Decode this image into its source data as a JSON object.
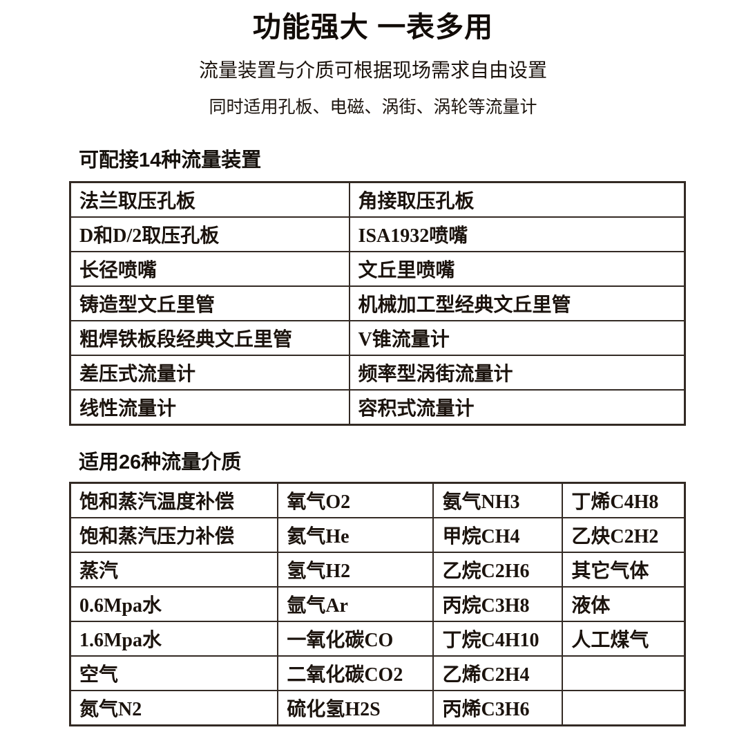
{
  "header": {
    "title": "功能强大 一表多用",
    "subtitle1": "流量装置与介质可根据现场需求自由设置",
    "subtitle2": "同时适用孔板、电磁、涡街、涡轮等流量计"
  },
  "devices_section": {
    "heading": "可配接14种流量装置",
    "rows": [
      [
        "法兰取压孔板",
        "角接取压孔板"
      ],
      [
        "D和D/2取压孔板",
        "ISA1932喷嘴"
      ],
      [
        "长径喷嘴",
        "文丘里喷嘴"
      ],
      [
        "铸造型文丘里管",
        "机械加工型经典文丘里管"
      ],
      [
        "粗焊铁板段经典文丘里管",
        "V锥流量计"
      ],
      [
        "差压式流量计",
        "频率型涡街流量计"
      ],
      [
        "线性流量计",
        "容积式流量计"
      ]
    ]
  },
  "media_section": {
    "heading": "适用26种流量介质",
    "rows": [
      [
        "饱和蒸汽温度补偿",
        "氧气O2",
        "氨气NH3",
        "丁烯C4H8"
      ],
      [
        "饱和蒸汽压力补偿",
        "氦气He",
        "甲烷CH4",
        "乙炔C2H2"
      ],
      [
        "蒸汽",
        "氢气H2",
        "乙烷C2H6",
        "其它气体"
      ],
      [
        "0.6Mpa水",
        "氩气Ar",
        "丙烷C3H8",
        "液体"
      ],
      [
        "1.6Mpa水",
        "一氧化碳CO",
        "丁烷C4H10",
        "人工煤气"
      ],
      [
        "空气",
        "二氧化碳CO2",
        "乙烯C2H4",
        ""
      ],
      [
        "氮气N2",
        "硫化氢H2S",
        "丙烯C3H6",
        ""
      ]
    ]
  },
  "colors": {
    "text": "#1b130d",
    "border": "#332a24",
    "background": "#ffffff"
  }
}
